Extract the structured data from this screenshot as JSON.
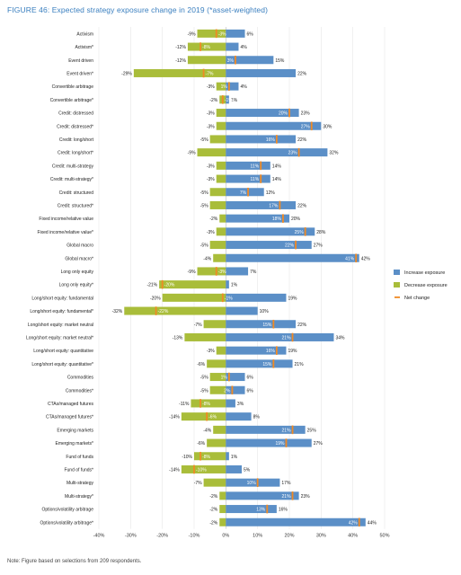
{
  "chart_data": {
    "type": "bar",
    "title": "FIGURE 46: Expected strategy exposure change in 2019 (*asset-weighted)",
    "note": "Note: Figure based on selections from 209 respondents.",
    "xlim": [
      -40,
      50
    ],
    "x_ticks": [
      "-40%",
      "-30%",
      "-20%",
      "-10%",
      "0%",
      "10%",
      "20%",
      "30%",
      "40%",
      "50%"
    ],
    "x_tick_values": [
      -40,
      -30,
      -20,
      -10,
      0,
      10,
      20,
      30,
      40,
      50
    ],
    "legend_position": "right",
    "series": [
      {
        "name": "Increase exposure",
        "color": "#5b8fc7",
        "values": [
          6,
          4,
          15,
          22,
          4,
          1,
          23,
          30,
          22,
          32,
          14,
          14,
          12,
          22,
          20,
          28,
          27,
          42,
          7,
          1,
          19,
          10,
          22,
          34,
          19,
          21,
          6,
          6,
          3,
          8,
          25,
          27,
          1,
          5,
          17,
          23,
          16,
          44
        ]
      },
      {
        "name": "Decrease exposure",
        "color": "#a9bd3a",
        "values": [
          -9,
          -12,
          -12,
          -29,
          -3,
          -2,
          -3,
          -3,
          -5,
          -9,
          -3,
          -3,
          -5,
          -5,
          -2,
          -3,
          -5,
          -4,
          -9,
          -21,
          -20,
          -32,
          -7,
          -13,
          -3,
          -6,
          -5,
          -5,
          -11,
          -14,
          -4,
          -6,
          -10,
          -14,
          -7,
          -2,
          -2,
          -2
        ]
      },
      {
        "name": "Net change",
        "color": "#f08a24",
        "values": [
          -3,
          -8,
          3,
          -7,
          1,
          -1,
          20,
          27,
          16,
          23,
          11,
          11,
          7,
          17,
          18,
          25,
          22,
          41,
          -3,
          -20,
          -1,
          -22,
          15,
          21,
          16,
          15,
          1,
          2,
          -8,
          -6,
          21,
          19,
          -8,
          -10,
          10,
          21,
          13,
          42
        ]
      }
    ],
    "categories": [
      "Activism",
      "Activism*",
      "Event driven",
      "Event driven*",
      "Convertible arbitrage",
      "Convertible arbitrage*",
      "Credit: distressed",
      "Credit: distressed*",
      "Credit: long/short",
      "Credit: long/short*",
      "Credit: multi-strategy",
      "Credit: multi-strategy*",
      "Credit: structured",
      "Credit: structured*",
      "Fixed income/relative value",
      "Fixed income/relative value*",
      "Global macro",
      "Global macro*",
      "Long only equity",
      "Long only equity*",
      "Long/short equity: fundamental",
      "Long/short equity: fundamental*",
      "Long/short equity: market neutral",
      "Long/short equity: market neutral*",
      "Long/short equity: quantitative",
      "Long/short equity: quantitative*",
      "Commodities",
      "Commodities*",
      "CTAs/managed futures",
      "CTAs/managed futures*",
      "Emerging markets",
      "Emerging markets*",
      "Fund of funds",
      "Fund of funds*",
      "Multi-strategy",
      "Multi-strategy*",
      "Options/volatility arbitrage",
      "Options/volatility arbitrage*"
    ],
    "increase_labels": [
      "6%",
      "4%",
      "15%",
      "22%",
      "4%",
      "1%",
      "23%",
      "30%",
      "22%",
      "32%",
      "14%",
      "14%",
      "12%",
      "22%",
      "20%",
      "28%",
      "27%",
      "42%",
      "7%",
      "1%",
      "19%",
      "10%",
      "22%",
      "34%",
      "19%",
      "21%",
      "6%",
      "6%",
      "3%",
      "8%",
      "25%",
      "27%",
      "1%",
      "5%",
      "17%",
      "23%",
      "16%",
      "44%"
    ],
    "decrease_labels": [
      "-9%",
      "-12%",
      "-12%",
      "-29%",
      "-3%",
      "-2%",
      "-3%",
      "-3%",
      "-5%",
      "-9%",
      "-3%",
      "-3%",
      "-5%",
      "-5%",
      "-2%",
      "-3%",
      "-5%",
      "-4%",
      "-9%",
      "-21%",
      "-20%",
      "-32%",
      "-7%",
      "-13%",
      "-3%",
      "-6%",
      "-5%",
      "-5%",
      "-11%",
      "-14%",
      "-4%",
      "-6%",
      "-10%",
      "-14%",
      "-7%",
      "-2%",
      "-2%",
      "-2%"
    ],
    "net_labels": [
      "-3%",
      "-8%",
      "3%",
      "-7%",
      "1%",
      "-1%",
      "20%",
      "27%",
      "16%",
      "23%",
      "11%",
      "11%",
      "7%",
      "17%",
      "18%",
      "25%",
      "22%",
      "41%",
      "-3%",
      "-20%",
      "-1%",
      "-22%",
      "15%",
      "21%",
      "16%",
      "15%",
      "1%",
      "2%",
      "-8%",
      "-6%",
      "21%",
      "19%",
      "-8%",
      "-10%",
      "10%",
      "21%",
      "13%",
      "42%"
    ]
  }
}
